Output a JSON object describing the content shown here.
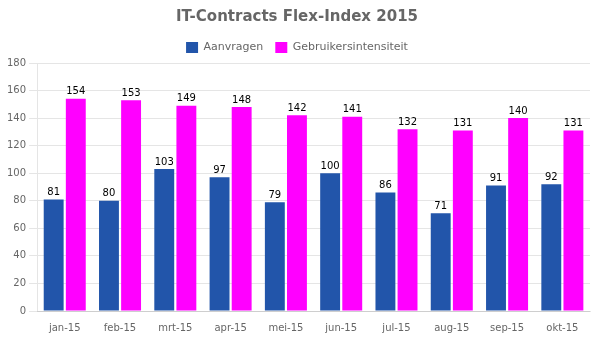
{
  "chart_data": {
    "type": "bar",
    "title": "IT-Contracts Flex-Index 2015",
    "categories": [
      "jan-15",
      "feb-15",
      "mrt-15",
      "apr-15",
      "mei-15",
      "jun-15",
      "jul-15",
      "aug-15",
      "sep-15",
      "okt-15"
    ],
    "series": [
      {
        "name": "Aanvragen",
        "color": "#2255AA",
        "values": [
          81,
          80,
          103,
          97,
          79,
          100,
          86,
          71,
          91,
          92
        ]
      },
      {
        "name": "Gebruikersintensiteit",
        "color": "#FF00FF",
        "values": [
          154,
          153,
          149,
          148,
          142,
          141,
          132,
          131,
          140,
          131
        ]
      }
    ],
    "ylim": [
      0,
      180
    ],
    "yticks": [
      0,
      20,
      40,
      60,
      80,
      100,
      120,
      140,
      160,
      180
    ],
    "grid": true,
    "legend": "top",
    "data_labels": true
  }
}
